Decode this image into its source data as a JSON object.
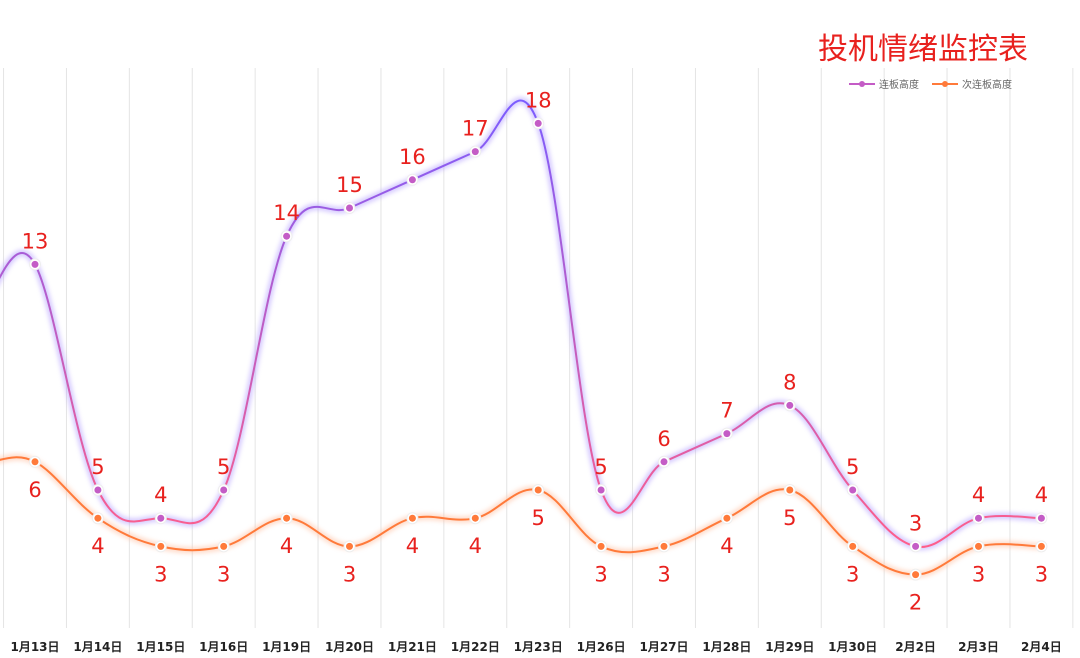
{
  "chart_data": {
    "type": "line",
    "title": "投机情绪监控表",
    "categories": [
      "1月13日",
      "1月14日",
      "1月15日",
      "1月16日",
      "1月19日",
      "1月20日",
      "1月21日",
      "1月22日",
      "1月23日",
      "1月26日",
      "1月27日",
      "1月28日",
      "1月29日",
      "1月30日",
      "2月2日",
      "2月3日",
      "2月4日"
    ],
    "series": [
      {
        "name": "连板高度",
        "values": [
          13,
          5,
          4,
          5,
          14,
          15,
          16,
          17,
          18,
          5,
          6,
          7,
          8,
          5,
          3,
          4,
          4
        ],
        "color_start": "#7b5cff",
        "color_end": "#ff5e8a",
        "marker_color": "#c45cc6"
      },
      {
        "name": "次连板高度",
        "values": [
          6,
          4,
          3,
          3,
          4,
          3,
          4,
          4,
          5,
          3,
          3,
          4,
          5,
          3,
          2,
          3,
          3
        ],
        "color": "#ff7a3a",
        "marker_color": "#ff7a3a"
      }
    ],
    "legend_position": "top-right",
    "grid": "vertical",
    "label_color": "#e8211e"
  }
}
